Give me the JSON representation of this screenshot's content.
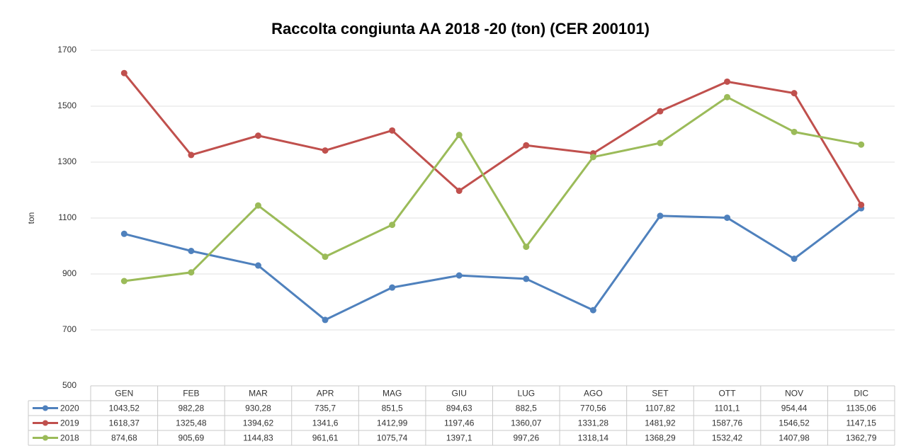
{
  "chart_data": {
    "type": "line",
    "title": "Raccolta congiunta AA 2018 -20 (ton) (CER 200101)",
    "y_label": "ton",
    "categories": [
      "GEN",
      "FEB",
      "MAR",
      "APR",
      "MAG",
      "GIU",
      "LUG",
      "AGO",
      "SET",
      "OTT",
      "NOV",
      "DIC"
    ],
    "series": [
      {
        "name": "2020",
        "color": "#4f81bd",
        "values": [
          1043.52,
          982.28,
          930.28,
          735.7,
          851.5,
          894.63,
          882.5,
          770.56,
          1107.82,
          1101.1,
          954.44,
          1135.06
        ],
        "value_labels": [
          "1043,52",
          "982,28",
          "930,28",
          "735,7",
          "851,5",
          "894,63",
          "882,5",
          "770,56",
          "1107,82",
          "1101,1",
          "954,44",
          "1135,06"
        ]
      },
      {
        "name": "2019",
        "color": "#c0504d",
        "values": [
          1618.37,
          1325.48,
          1394.62,
          1341.6,
          1412.99,
          1197.46,
          1360.07,
          1331.28,
          1481.92,
          1587.76,
          1546.52,
          1147.15
        ],
        "value_labels": [
          "1618,37",
          "1325,48",
          "1394,62",
          "1341,6",
          "1412,99",
          "1197,46",
          "1360,07",
          "1331,28",
          "1481,92",
          "1587,76",
          "1546,52",
          "1147,15"
        ]
      },
      {
        "name": "2018",
        "color": "#9bbb59",
        "values": [
          874.68,
          905.69,
          1144.83,
          961.61,
          1075.74,
          1397.1,
          997.26,
          1318.14,
          1368.29,
          1532.42,
          1407.98,
          1362.79
        ],
        "value_labels": [
          "874,68",
          "905,69",
          "1144,83",
          "961,61",
          "1075,74",
          "1397,1",
          "997,26",
          "1318,14",
          "1368,29",
          "1532,42",
          "1407,98",
          "1362,79"
        ]
      }
    ],
    "ylim": [
      500,
      1700
    ],
    "yticks": [
      500,
      700,
      900,
      1100,
      1300,
      1500,
      1700
    ],
    "grid": true,
    "data_table": true
  }
}
